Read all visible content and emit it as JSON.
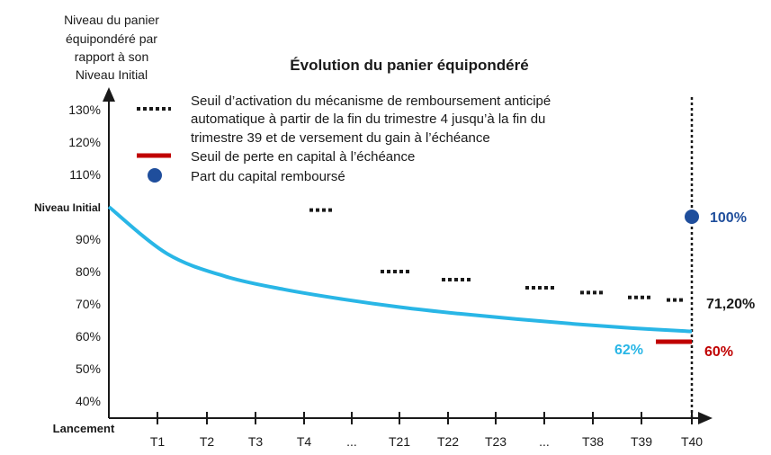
{
  "chart_data": {
    "type": "line",
    "title": "Évolution du panier équipondéré",
    "ylabel_lines": [
      "Niveau du panier",
      "équipondéré par",
      "rapport à son",
      "Niveau Initial"
    ],
    "y_ticks": [
      "130%",
      "120%",
      "110%",
      "Niveau Initial",
      "90%",
      "80%",
      "70%",
      "60%",
      "50%",
      "40%"
    ],
    "y_tick_values": [
      130,
      120,
      110,
      100,
      90,
      80,
      70,
      60,
      50,
      40
    ],
    "ylim": [
      40,
      130
    ],
    "x_origin_label": "Lancement",
    "x_ticks": [
      "T1",
      "T2",
      "T3",
      "T4",
      "...",
      "T21",
      "T22",
      "T23",
      "...",
      "T38",
      "T39",
      "T40"
    ],
    "series": [
      {
        "name": "Évolution du panier équipondéré",
        "color": "#29b6e6",
        "x": [
          0,
          4,
          8,
          12,
          16,
          20,
          24,
          28,
          32,
          36,
          40
        ],
        "y": [
          100,
          85.5,
          78.5,
          74.5,
          71.5,
          69,
          67,
          65.3,
          63.8,
          62.5,
          61.5
        ]
      }
    ],
    "autocall_barrier": {
      "name": "Seuil d’activation du mécanisme de remboursement anticipé automatique à partir de la fin du trimestre 4 jusqu’à la fin du trimestre 39 et de versement du gain à l’échéance",
      "color": "#1a1a1a",
      "points": [
        {
          "period": "T4",
          "value": 99
        },
        {
          "period": "T21",
          "value": 80
        },
        {
          "period": "T22",
          "value": 77.5
        },
        {
          "period": "T23",
          "value": 75
        },
        {
          "period": "T38",
          "value": 73.5
        },
        {
          "period": "T39",
          "value": 72
        },
        {
          "period": "T40",
          "value": 71.2
        }
      ]
    },
    "capital_loss_threshold": {
      "name": "Seuil de perte en capital à l’échéance",
      "color": "#c00000",
      "value": 60
    },
    "capital_repaid": {
      "name": "Part du capital remboursé",
      "color": "#1f4e9c",
      "value": 100
    },
    "annotations": {
      "final_level": {
        "text": "62%",
        "value": 62,
        "color": "#29b6e6"
      },
      "repaid_label": {
        "text": "100%",
        "color": "#1f4e9c"
      },
      "barrier_label": {
        "text": "71,20%",
        "color": "#1a1a1a"
      },
      "loss_label": {
        "text": "60%",
        "color": "#c00000"
      }
    },
    "legend": [
      {
        "marker": "dotted",
        "lines": [
          "Seuil d’activation du mécanisme de remboursement anticipé",
          "automatique à partir de la fin du trimestre 4 jusqu’à la fin du",
          "trimestre 39 et de versement du gain à l’échéance"
        ]
      },
      {
        "marker": "bar",
        "lines": [
          "Seuil de perte en capital à l’échéance"
        ]
      },
      {
        "marker": "circle",
        "lines": [
          "Part du capital remboursé"
        ]
      }
    ]
  }
}
